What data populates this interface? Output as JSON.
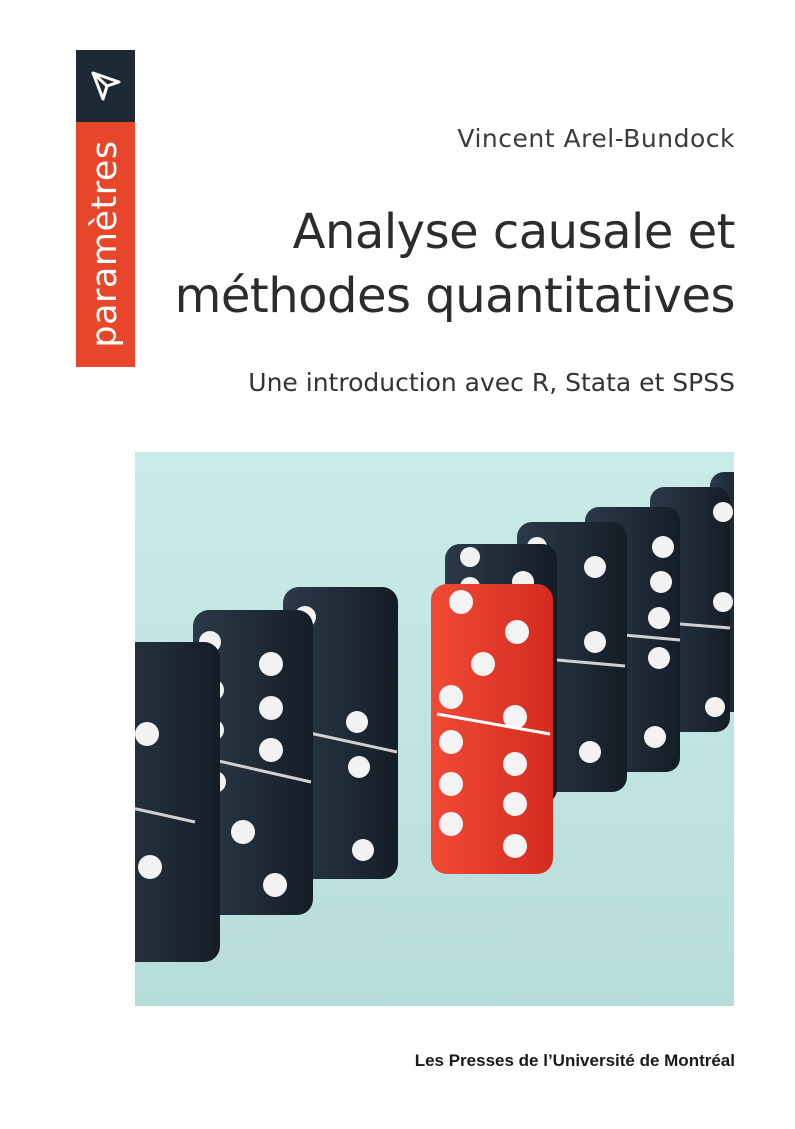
{
  "series": {
    "name": "paramètres",
    "logo_icon": "arrow-triangle-icon",
    "colors": {
      "logo_bg": "#1d2a36",
      "band_bg": "#e8462a"
    }
  },
  "author": "Vincent Arel-Bundock",
  "title": {
    "line1": "Analyse causale et",
    "line2": "méthodes quantitatives"
  },
  "subtitle": "Une introduction avec R, Stata et SPSS",
  "cover_image": {
    "description_icon": "dominoes-illustration",
    "colors": {
      "background": "#c6e8e5",
      "domino": "#1f2c38",
      "highlight": "#e8392b"
    }
  },
  "publisher": "Les Presses de l’Université de Montréal"
}
